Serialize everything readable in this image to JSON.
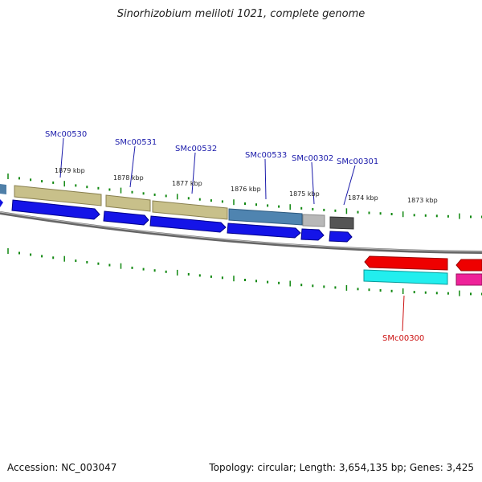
{
  "title": "Sinorhizobium meliloti 1021, complete genome",
  "footer": {
    "accession": "Accession: NC_003047",
    "topology": "Topology: circular; Length: 3,654,135 bp; Genes: 3,425"
  },
  "colors": {
    "backbone": "#888888",
    "ticks": "#118811",
    "label_upper": "#1a1aaa",
    "label_lower": "#cc1111",
    "kbp_text": "#222222"
  },
  "kbp_labels": [
    "1879 kbp",
    "1878 kbp",
    "1877 kbp",
    "1876 kbp",
    "1875 kbp",
    "1874 kbp",
    "1873 kbp"
  ],
  "genes": [
    {
      "name": "SMc00530",
      "strand": "upper"
    },
    {
      "name": "SMc00531",
      "strand": "upper"
    },
    {
      "name": "SMc00532",
      "strand": "upper"
    },
    {
      "name": "SMc00533",
      "strand": "upper"
    },
    {
      "name": "SMc00302",
      "strand": "upper"
    },
    {
      "name": "SMc00301",
      "strand": "upper"
    },
    {
      "name": "SMc00300",
      "strand": "lower"
    }
  ]
}
